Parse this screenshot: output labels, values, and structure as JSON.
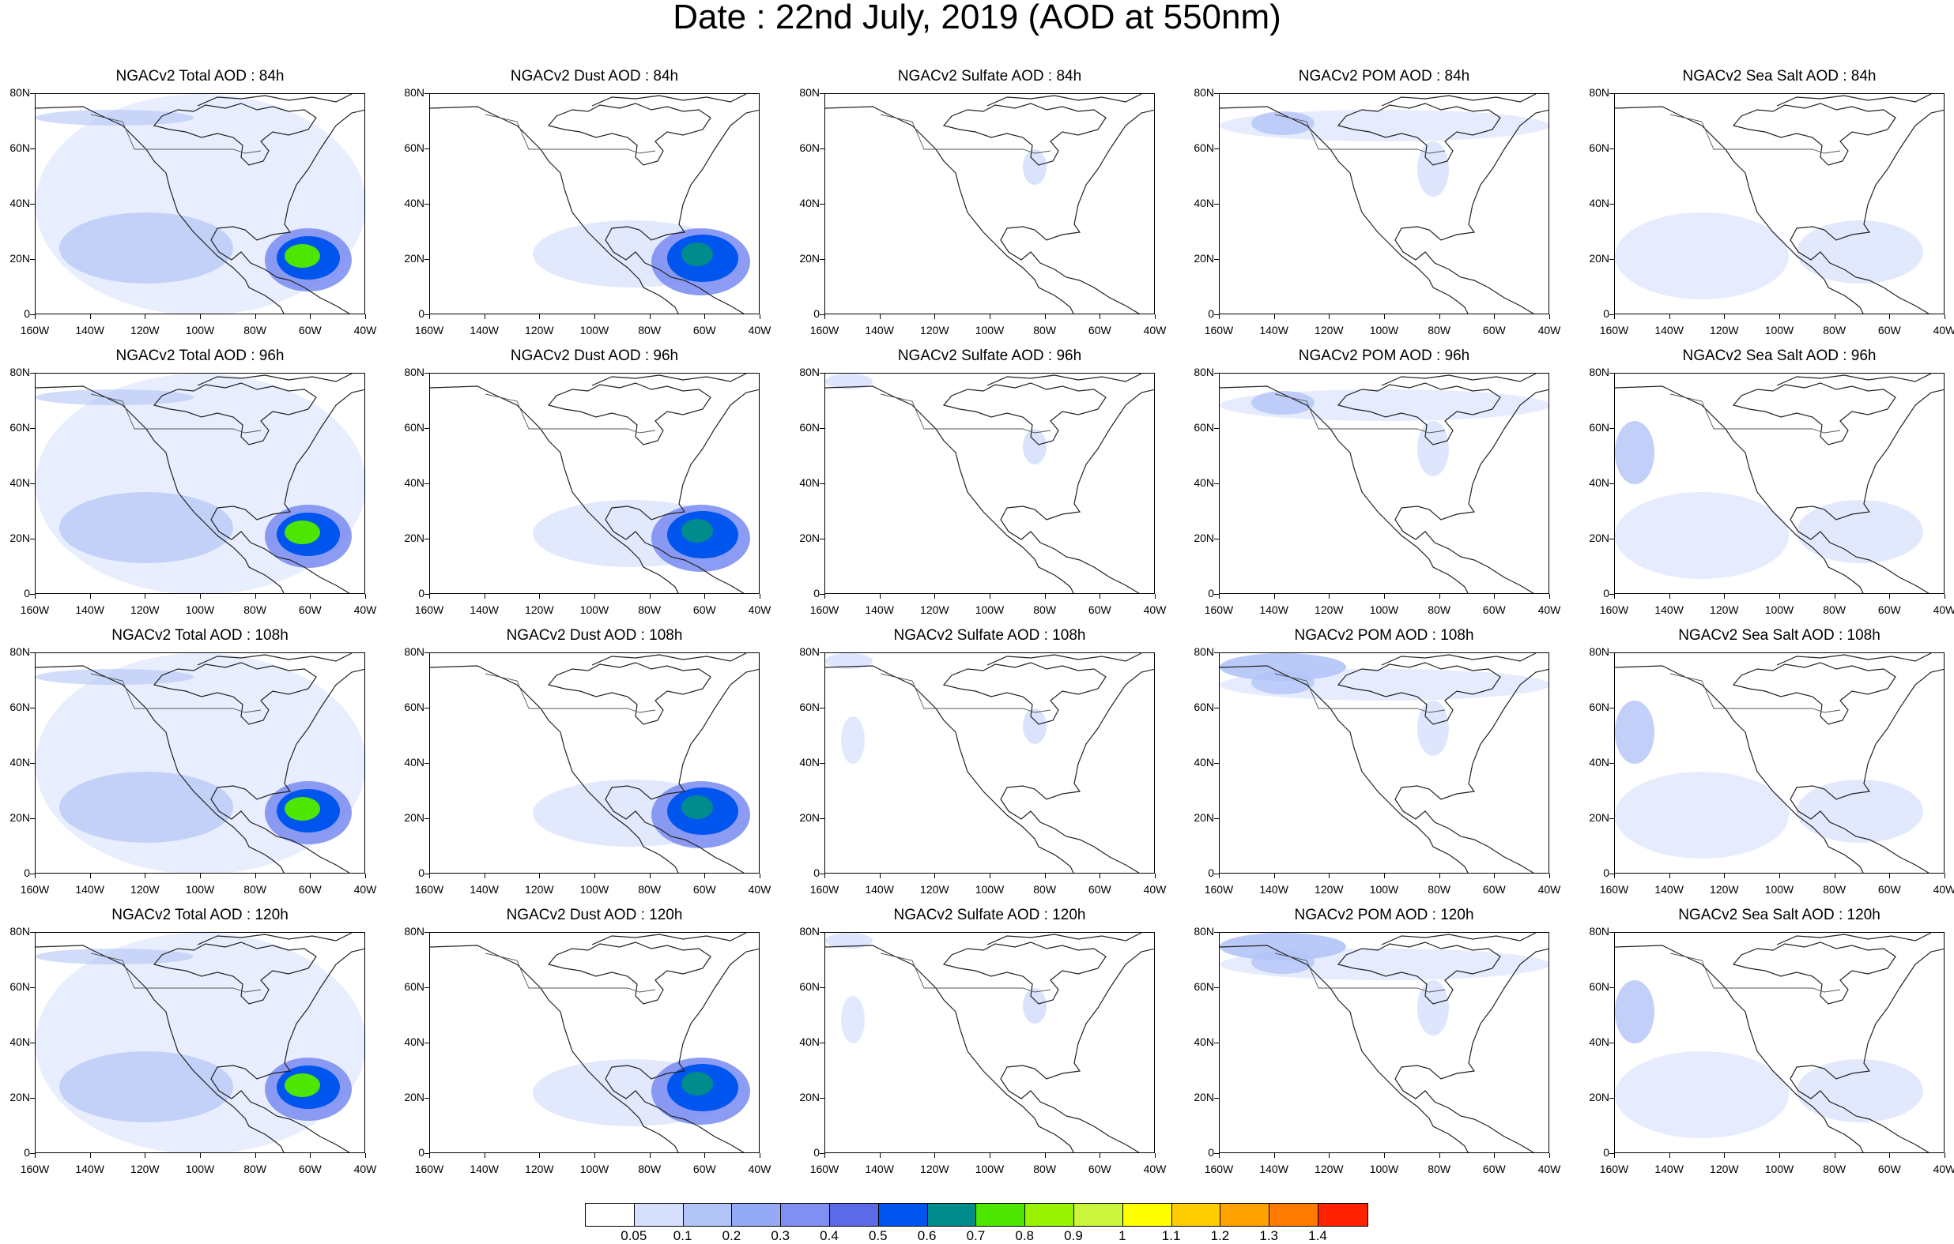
{
  "title": "Date : 22nd July, 2019 (AOD at 550nm)",
  "panels": [
    [
      "NGACv2 Total AOD : 84h",
      "NGACv2 Dust AOD : 84h",
      "NGACv2 Sulfate AOD : 84h",
      "NGACv2 POM AOD : 84h",
      "NGACv2 Sea Salt AOD : 84h"
    ],
    [
      "NGACv2 Total AOD : 96h",
      "NGACv2 Dust AOD : 96h",
      "NGACv2 Sulfate AOD : 96h",
      "NGACv2 POM AOD : 96h",
      "NGACv2 Sea Salt AOD : 96h"
    ],
    [
      "NGACv2 Total AOD : 108h",
      "NGACv2 Dust AOD : 108h",
      "NGACv2 Sulfate AOD : 108h",
      "NGACv2 POM AOD : 108h",
      "NGACv2 Sea Salt AOD : 108h"
    ],
    [
      "NGACv2 Total AOD : 120h",
      "NGACv2 Dust AOD : 120h",
      "NGACv2 Sulfate AOD : 120h",
      "NGACv2 POM AOD : 120h",
      "NGACv2 Sea Salt  AOD : 120h"
    ]
  ],
  "lat_labels": [
    "80N",
    "60N",
    "40N",
    "20N",
    "0"
  ],
  "lon_labels": [
    "160W",
    "140W",
    "120W",
    "100W",
    "80W",
    "60W",
    "40W"
  ],
  "colorbar": {
    "colors": [
      "#ffffff",
      "#d6e0fc",
      "#b3c4f7",
      "#94aaf5",
      "#7f90f2",
      "#5c6ae8",
      "#0055ee",
      "#008c8c",
      "#4de600",
      "#99f200",
      "#ccf53d",
      "#ffff00",
      "#ffcc00",
      "#ffa200",
      "#ff7a00",
      "#ff2200"
    ],
    "labels": [
      "0.05",
      "0.1",
      "0.2",
      "0.3",
      "0.4",
      "0.5",
      "0.6",
      "0.7",
      "0.8",
      "0.9",
      "1",
      "1.1",
      "1.2",
      "1.3",
      "1.4"
    ]
  },
  "icons": {
    "coastline": "coastline-outline",
    "plume": "aerosol-plume-shading"
  }
}
